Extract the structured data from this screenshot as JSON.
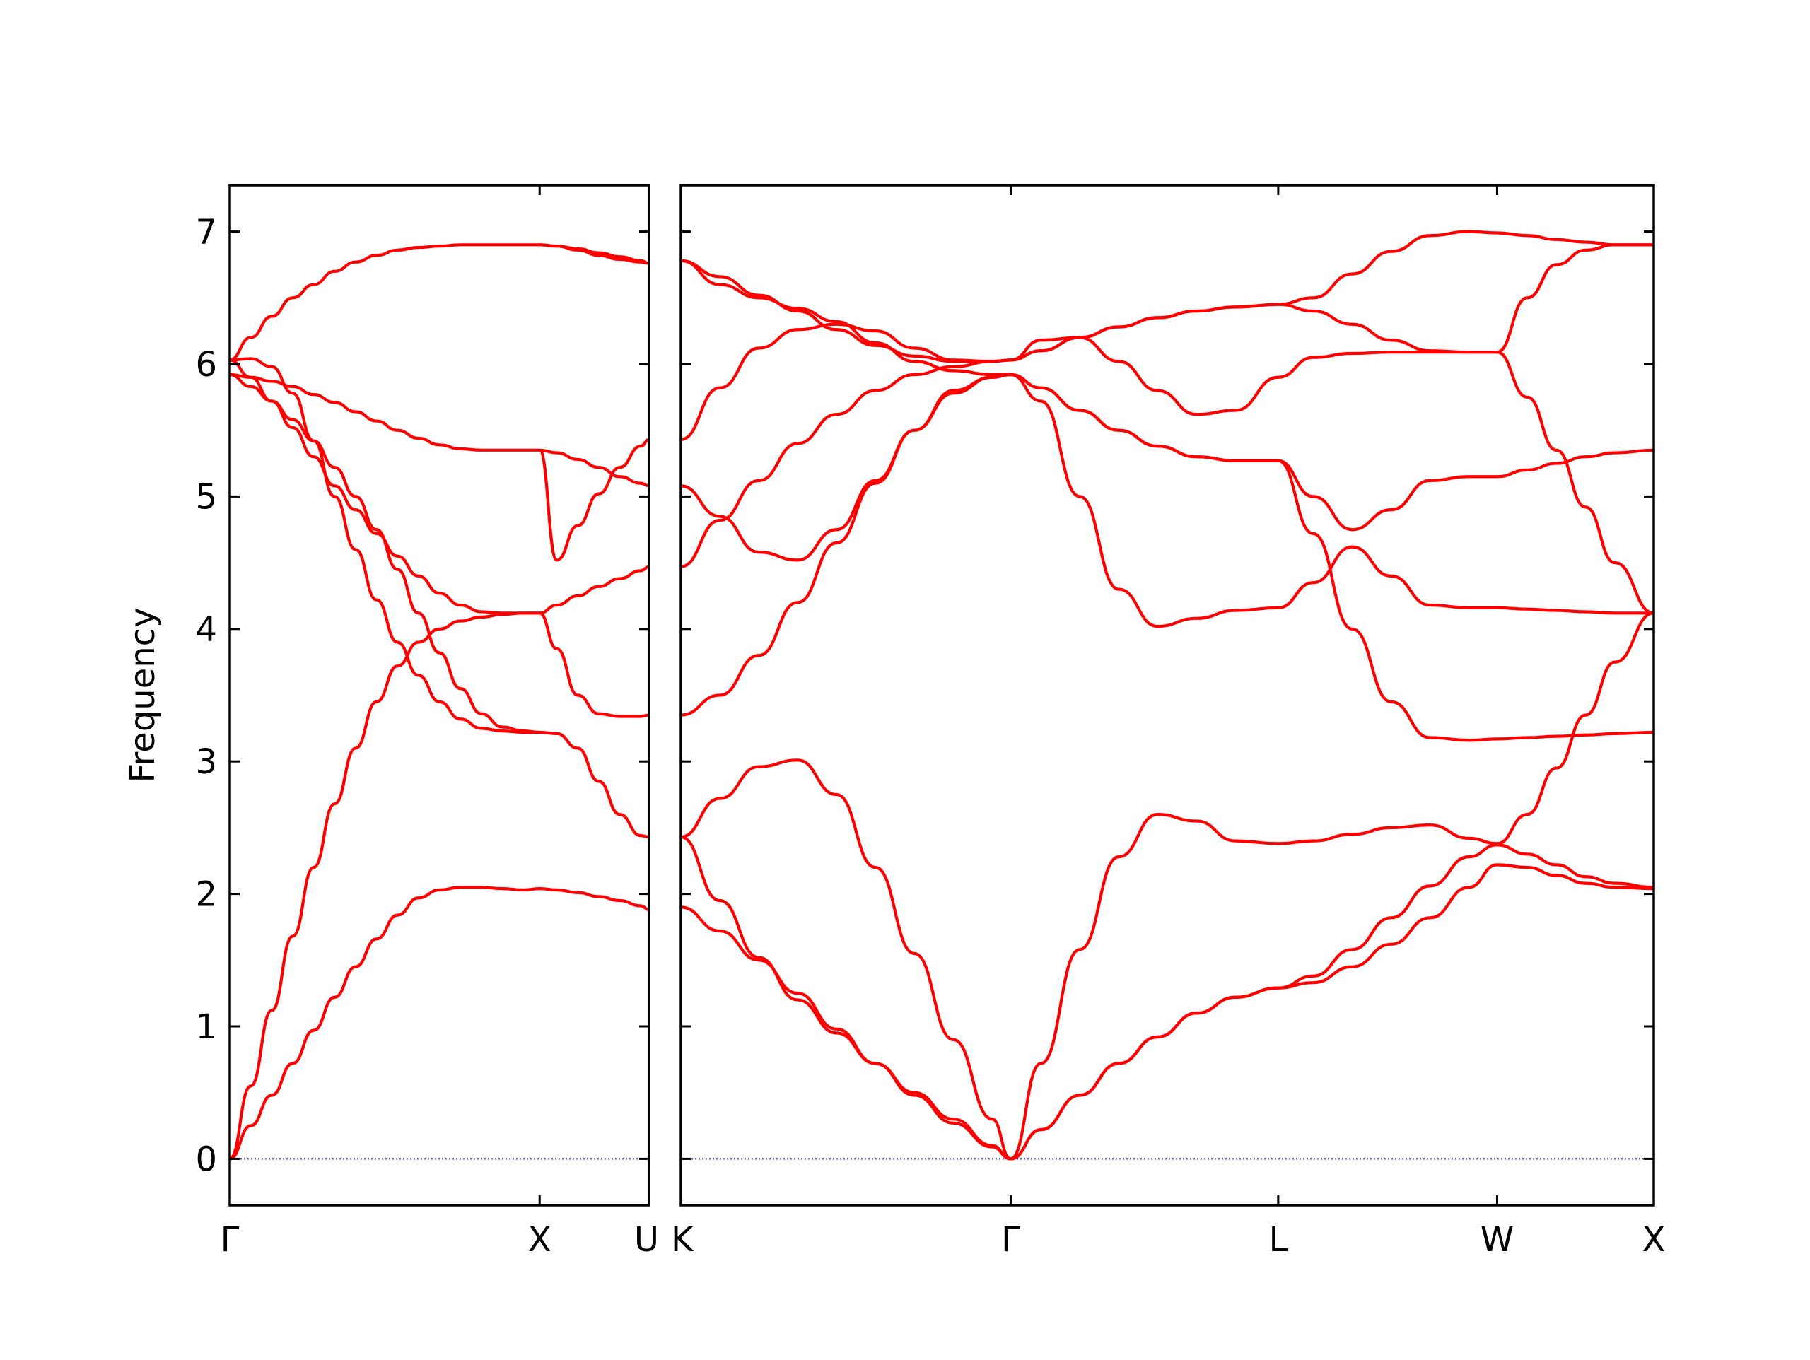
{
  "chart_data": {
    "type": "line",
    "ylabel": "Frequency",
    "ylim": [
      -0.35,
      7.35
    ],
    "yticks": [
      "0",
      "1",
      "2",
      "3",
      "4",
      "5",
      "6",
      "7"
    ],
    "grid": false,
    "line_color": "#ff0000",
    "zero_line_color": "#00008b",
    "panels": [
      {
        "name": "left",
        "x_range": [
          0,
          1.0
        ],
        "kpoints": [
          {
            "label": "Γ",
            "x": 0
          },
          {
            "label": "X",
            "x": 0.739
          },
          {
            "label": "U",
            "x": 1.0
          }
        ],
        "bands": [
          {
            "x": [
              0,
              0.05,
              0.1,
              0.15,
              0.2,
              0.25,
              0.3,
              0.35,
              0.4,
              0.45,
              0.5,
              0.55,
              0.6,
              0.65,
              0.7,
              0.739,
              0.78,
              0.83,
              0.88,
              0.93,
              0.98,
              1.0
            ],
            "y": [
              0.0,
              0.25,
              0.48,
              0.72,
              0.97,
              1.22,
              1.45,
              1.66,
              1.84,
              1.97,
              2.03,
              2.05,
              2.05,
              2.04,
              2.03,
              2.04,
              2.03,
              2.01,
              1.98,
              1.95,
              1.91,
              1.88
            ]
          },
          {
            "x": [
              0,
              0.05,
              0.1,
              0.15,
              0.2,
              0.25,
              0.3,
              0.35,
              0.4,
              0.45,
              0.5,
              0.55,
              0.6,
              0.65,
              0.7,
              0.739,
              0.78,
              0.83,
              0.88,
              0.93,
              0.98,
              1.0
            ],
            "y": [
              0.0,
              0.55,
              1.12,
              1.68,
              2.2,
              2.68,
              3.1,
              3.45,
              3.72,
              3.9,
              4.0,
              4.06,
              4.09,
              4.11,
              4.12,
              4.12,
              4.18,
              4.25,
              4.32,
              4.38,
              4.44,
              4.47
            ]
          },
          {
            "x": [
              0,
              0.05,
              0.1,
              0.15,
              0.2,
              0.25,
              0.3,
              0.35,
              0.4,
              0.45,
              0.5,
              0.55,
              0.6,
              0.65,
              0.7,
              0.739,
              0.78,
              0.83,
              0.88,
              0.93,
              0.98,
              1.0
            ],
            "y": [
              5.92,
              5.83,
              5.72,
              5.58,
              5.42,
              5.22,
              5.0,
              4.75,
              4.45,
              4.12,
              3.82,
              3.55,
              3.36,
              3.26,
              3.23,
              3.22,
              3.21,
              3.1,
              2.85,
              2.6,
              2.44,
              2.43
            ]
          },
          {
            "x": [
              0,
              0.05,
              0.1,
              0.15,
              0.2,
              0.25,
              0.3,
              0.35,
              0.4,
              0.45,
              0.5,
              0.55,
              0.6,
              0.65,
              0.7,
              0.739,
              0.78,
              0.83,
              0.88,
              0.93,
              0.98,
              1.0
            ],
            "y": [
              6.03,
              5.9,
              5.72,
              5.52,
              5.3,
              5.08,
              4.9,
              4.72,
              4.55,
              4.4,
              4.27,
              4.18,
              4.13,
              4.12,
              4.12,
              4.12,
              3.85,
              3.5,
              3.36,
              3.34,
              3.34,
              3.35
            ]
          },
          {
            "x": [
              0,
              0.05,
              0.1,
              0.15,
              0.2,
              0.25,
              0.3,
              0.35,
              0.4,
              0.45,
              0.5,
              0.55,
              0.6,
              0.65,
              0.7,
              0.739,
              0.78,
              0.83,
              0.88,
              0.93,
              0.98,
              1.0
            ],
            "y": [
              5.92,
              5.9,
              5.87,
              5.83,
              5.77,
              5.71,
              5.64,
              5.57,
              5.5,
              5.44,
              5.39,
              5.36,
              5.35,
              5.35,
              5.35,
              5.35,
              4.52,
              4.78,
              5.02,
              5.22,
              5.38,
              5.43
            ]
          },
          {
            "x": [
              0,
              0.05,
              0.1,
              0.15,
              0.2,
              0.25,
              0.3,
              0.35,
              0.4,
              0.45,
              0.5,
              0.55,
              0.6,
              0.65,
              0.7,
              0.739,
              0.78,
              0.83,
              0.88,
              0.93,
              0.98,
              1.0
            ],
            "y": [
              6.03,
              6.2,
              6.36,
              6.5,
              6.6,
              6.7,
              6.77,
              6.82,
              6.86,
              6.88,
              6.89,
              6.9,
              6.9,
              6.9,
              6.9,
              6.9,
              6.89,
              6.87,
              6.84,
              6.81,
              6.78,
              6.76
            ]
          }
        ],
        "extra_bands": [
          {
            "x": [
              0,
              0.05,
              0.1,
              0.15,
              0.2,
              0.25,
              0.3,
              0.35,
              0.4,
              0.45,
              0.5,
              0.55,
              0.6,
              0.65,
              0.7,
              0.739
            ],
            "y": [
              6.03,
              6.04,
              5.98,
              5.78,
              5.42,
              5.0,
              4.6,
              4.22,
              3.9,
              3.65,
              3.45,
              3.32,
              3.25,
              3.23,
              3.22,
              3.22
            ]
          },
          {
            "x": [
              0.739,
              0.78,
              0.83,
              0.88,
              0.93,
              0.98,
              1.0
            ],
            "y": [
              5.35,
              5.33,
              5.28,
              5.22,
              5.15,
              5.1,
              5.08
            ]
          },
          {
            "x": [
              0.739,
              0.78,
              0.83,
              0.88,
              0.93,
              0.98,
              1.0
            ],
            "y": [
              6.9,
              6.89,
              6.86,
              6.82,
              6.79,
              6.77,
              6.76
            ]
          }
        ]
      },
      {
        "name": "right",
        "x_range": [
          0,
          1.0
        ],
        "kpoints": [
          {
            "label": "K",
            "x": 0
          },
          {
            "label": "Γ",
            "x": 0.339
          },
          {
            "label": "L",
            "x": 0.614
          },
          {
            "label": "W",
            "x": 0.839
          },
          {
            "label": "X",
            "x": 1.0
          }
        ],
        "bands": [
          {
            "x": [
              0,
              0.04,
              0.08,
              0.12,
              0.16,
              0.2,
              0.24,
              0.28,
              0.32,
              0.339,
              0.37,
              0.41,
              0.45,
              0.49,
              0.53,
              0.57,
              0.614,
              0.65,
              0.69,
              0.73,
              0.77,
              0.81,
              0.839,
              0.87,
              0.9,
              0.93,
              0.96,
              1.0
            ],
            "y": [
              2.43,
              1.95,
              1.52,
              1.2,
              0.95,
              0.72,
              0.5,
              0.3,
              0.1,
              0.0,
              0.22,
              0.48,
              0.72,
              0.92,
              1.1,
              1.22,
              1.29,
              1.33,
              1.45,
              1.62,
              1.82,
              2.05,
              2.22,
              2.2,
              2.14,
              2.08,
              2.05,
              2.04
            ]
          },
          {
            "x": [
              0,
              0.04,
              0.08,
              0.12,
              0.16,
              0.2,
              0.24,
              0.28,
              0.32,
              0.339,
              0.37,
              0.41,
              0.45,
              0.49,
              0.53,
              0.57,
              0.614,
              0.65,
              0.69,
              0.73,
              0.77,
              0.81,
              0.839,
              0.87,
              0.9,
              0.93,
              0.96,
              1.0
            ],
            "y": [
              1.9,
              1.72,
              1.5,
              1.25,
              0.98,
              0.72,
              0.48,
              0.27,
              0.09,
              0.0,
              0.22,
              0.48,
              0.72,
              0.92,
              1.1,
              1.22,
              1.29,
              1.38,
              1.58,
              1.82,
              2.06,
              2.28,
              2.37,
              2.3,
              2.22,
              2.13,
              2.08,
              2.05
            ]
          },
          {
            "x": [
              0,
              0.04,
              0.08,
              0.12,
              0.16,
              0.2,
              0.24,
              0.28,
              0.32,
              0.339,
              0.37,
              0.41,
              0.45,
              0.49,
              0.53,
              0.57,
              0.614,
              0.65,
              0.69,
              0.73,
              0.77,
              0.81,
              0.839,
              0.87,
              0.9,
              0.93,
              0.96,
              1.0
            ],
            "y": [
              2.43,
              2.72,
              2.96,
              3.01,
              2.75,
              2.2,
              1.55,
              0.9,
              0.3,
              0.0,
              0.72,
              1.58,
              2.28,
              2.6,
              2.55,
              2.4,
              2.38,
              2.4,
              2.45,
              2.5,
              2.52,
              2.42,
              2.38,
              2.6,
              2.95,
              3.35,
              3.75,
              4.12
            ]
          },
          {
            "x": [
              0,
              0.04,
              0.08,
              0.12,
              0.16,
              0.2,
              0.24,
              0.28,
              0.32,
              0.339,
              0.37,
              0.41,
              0.45,
              0.49,
              0.53,
              0.57,
              0.614,
              0.65,
              0.69,
              0.73,
              0.77,
              0.81,
              0.839,
              0.87,
              0.9,
              0.93,
              0.96,
              1.0
            ],
            "y": [
              3.35,
              3.5,
              3.8,
              4.2,
              4.65,
              5.1,
              5.5,
              5.78,
              5.9,
              5.92,
              5.72,
              5.0,
              4.3,
              4.02,
              4.08,
              4.14,
              4.16,
              4.35,
              4.62,
              4.4,
              4.18,
              4.16,
              4.16,
              4.15,
              4.14,
              4.13,
              4.12,
              4.12
            ]
          },
          {
            "x": [
              0,
              0.04,
              0.08,
              0.12,
              0.16,
              0.2,
              0.24,
              0.28,
              0.32,
              0.339,
              0.37,
              0.41,
              0.45,
              0.49,
              0.53,
              0.57,
              0.614,
              0.65,
              0.69,
              0.73,
              0.77,
              0.81,
              0.839,
              0.87,
              0.9,
              0.93,
              0.96,
              1.0
            ],
            "y": [
              4.47,
              4.82,
              5.12,
              5.4,
              5.62,
              5.8,
              5.92,
              5.98,
              6.02,
              6.03,
              6.1,
              6.2,
              6.28,
              6.35,
              6.4,
              6.43,
              6.45,
              6.4,
              6.3,
              6.18,
              6.1,
              6.09,
              6.09,
              6.5,
              6.75,
              6.86,
              6.9,
              6.9
            ]
          },
          {
            "x": [
              0,
              0.04,
              0.08,
              0.12,
              0.16,
              0.2,
              0.24,
              0.28,
              0.32,
              0.339,
              0.37,
              0.41,
              0.45,
              0.49,
              0.53,
              0.57,
              0.614,
              0.65,
              0.69,
              0.73,
              0.77,
              0.81,
              0.839,
              0.87,
              0.9,
              0.93,
              0.96,
              1.0
            ],
            "y": [
              6.78,
              6.6,
              6.5,
              6.42,
              6.32,
              6.16,
              6.02,
              5.95,
              5.92,
              5.92,
              5.82,
              5.65,
              5.5,
              5.38,
              5.3,
              5.27,
              5.27,
              5.0,
              4.75,
              4.9,
              5.12,
              5.15,
              5.15,
              5.2,
              5.25,
              5.3,
              5.33,
              5.35
            ]
          }
        ],
        "extra_bands": [
          {
            "x": [
              0,
              0.04,
              0.08,
              0.12,
              0.16,
              0.2,
              0.24,
              0.28,
              0.32,
              0.339,
              0.37,
              0.41,
              0.45,
              0.49,
              0.53,
              0.57,
              0.614,
              0.65,
              0.69,
              0.73,
              0.77,
              0.81,
              0.839,
              0.87,
              0.9,
              0.93,
              0.96,
              1.0
            ],
            "y": [
              5.43,
              5.82,
              6.12,
              6.26,
              6.3,
              6.25,
              6.12,
              6.03,
              6.02,
              6.03,
              6.18,
              6.2,
              6.02,
              5.8,
              5.62,
              5.65,
              5.9,
              6.05,
              6.08,
              6.09,
              6.09,
              6.09,
              6.09,
              5.75,
              5.35,
              4.92,
              4.5,
              4.12
            ]
          },
          {
            "x": [
              0,
              0.04,
              0.08,
              0.12,
              0.16,
              0.2,
              0.24,
              0.28,
              0.32,
              0.339,
              0.37,
              0.41,
              0.45,
              0.49,
              0.53,
              0.57,
              0.614,
              0.65,
              0.69,
              0.73,
              0.77,
              0.81,
              0.839,
              0.87,
              0.9,
              0.93,
              0.96,
              1.0
            ],
            "y": [
              5.08,
              4.85,
              4.58,
              4.52,
              4.75,
              5.12,
              5.5,
              5.8,
              5.9,
              5.92,
              5.82,
              5.65,
              5.5,
              5.38,
              5.3,
              5.27,
              5.27,
              4.72,
              4.0,
              3.45,
              3.18,
              3.16,
              3.17,
              3.18,
              3.19,
              3.2,
              3.21,
              3.22
            ]
          },
          {
            "x": [
              0,
              0.04,
              0.08,
              0.12,
              0.16,
              0.2,
              0.24,
              0.28,
              0.32,
              0.339,
              0.37,
              0.41,
              0.45,
              0.49,
              0.53,
              0.57,
              0.614,
              0.65,
              0.69,
              0.73,
              0.77,
              0.81,
              0.839,
              0.87,
              0.9,
              0.93,
              0.96,
              1.0
            ],
            "y": [
              6.78,
              6.66,
              6.52,
              6.4,
              6.26,
              6.14,
              6.06,
              6.02,
              6.02,
              6.03,
              6.1,
              6.2,
              6.28,
              6.35,
              6.4,
              6.43,
              6.45,
              6.5,
              6.68,
              6.85,
              6.97,
              7.0,
              6.99,
              6.97,
              6.94,
              6.92,
              6.9,
              6.9
            ]
          }
        ]
      }
    ]
  }
}
